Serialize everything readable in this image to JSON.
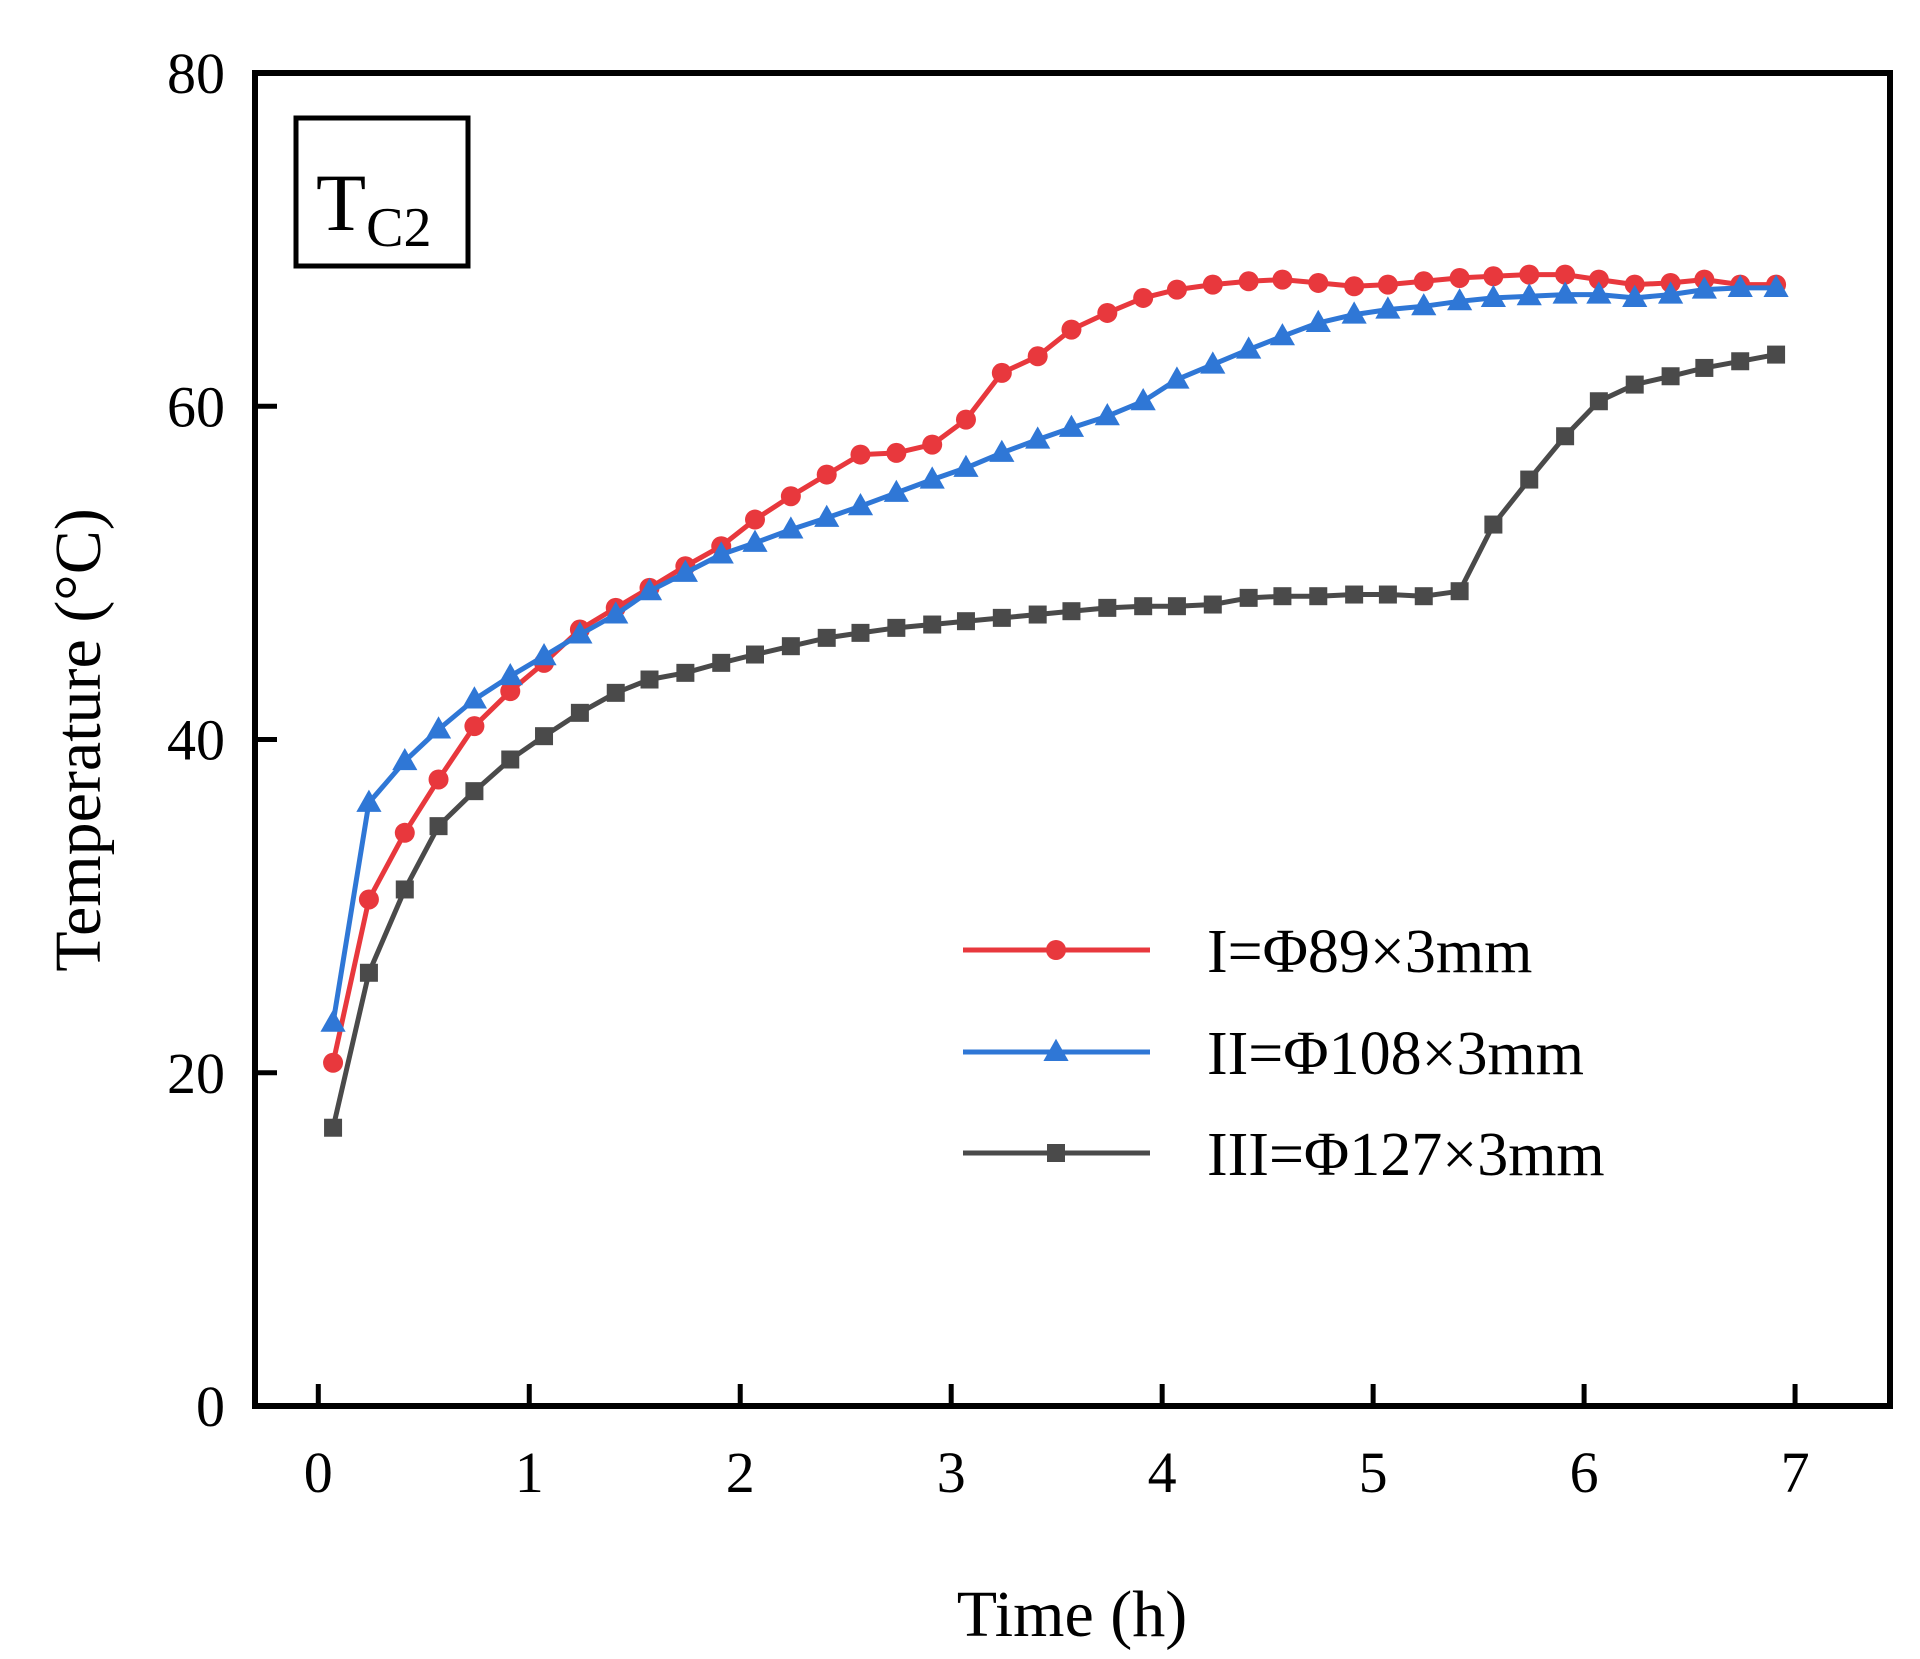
{
  "chart_data": {
    "type": "line",
    "title": "",
    "xlabel": "Time (h)",
    "ylabel": "Temperature (°C)",
    "xlim": [
      -0.3,
      7.45
    ],
    "ylim": [
      0,
      80
    ],
    "xticks": [
      "0",
      "1",
      "2",
      "3",
      "4",
      "5",
      "6",
      "7"
    ],
    "yticks": [
      "0",
      "20",
      "40",
      "60",
      "80"
    ],
    "grid": false,
    "legend_position": "lower-right",
    "panel_label": {
      "main": "T",
      "sub": "C2"
    },
    "series": [
      {
        "name": "I=Φ89×3mm",
        "color": "#e8383d",
        "marker": "circle",
        "x": [
          0.07,
          0.24,
          0.41,
          0.57,
          0.74,
          0.91,
          1.07,
          1.24,
          1.41,
          1.57,
          1.74,
          1.91,
          2.07,
          2.24,
          2.41,
          2.57,
          2.74,
          2.91,
          3.07,
          3.24,
          3.41,
          3.57,
          3.74,
          3.91,
          4.07,
          4.24,
          4.41,
          4.57,
          4.74,
          4.91,
          5.07,
          5.24,
          5.41,
          5.57,
          5.74,
          5.91,
          6.07,
          6.24,
          6.41,
          6.57,
          6.74,
          6.91
        ],
        "y": [
          20.6,
          30.4,
          34.4,
          37.6,
          40.8,
          42.9,
          44.6,
          46.6,
          47.9,
          49.1,
          50.4,
          51.6,
          53.2,
          54.6,
          55.9,
          57.1,
          57.2,
          57.7,
          59.2,
          62.0,
          63.0,
          64.6,
          65.6,
          66.5,
          67.0,
          67.3,
          67.5,
          67.6,
          67.4,
          67.2,
          67.3,
          67.5,
          67.7,
          67.8,
          67.9,
          67.9,
          67.6,
          67.3,
          67.4,
          67.6,
          67.3,
          67.3
        ]
      },
      {
        "name": "II=Φ108×3mm",
        "color": "#2f77d6",
        "marker": "triangle",
        "x": [
          0.07,
          0.24,
          0.41,
          0.57,
          0.74,
          0.91,
          1.07,
          1.24,
          1.41,
          1.57,
          1.74,
          1.91,
          2.07,
          2.24,
          2.41,
          2.57,
          2.74,
          2.91,
          3.07,
          3.24,
          3.41,
          3.57,
          3.74,
          3.91,
          4.07,
          4.24,
          4.41,
          4.57,
          4.74,
          4.91,
          5.07,
          5.24,
          5.41,
          5.57,
          5.74,
          5.91,
          6.07,
          6.24,
          6.41,
          6.57,
          6.74,
          6.91
        ],
        "y": [
          23.0,
          36.2,
          38.7,
          40.6,
          42.4,
          43.8,
          45.0,
          46.3,
          47.5,
          48.9,
          50.0,
          51.1,
          51.8,
          52.6,
          53.3,
          54.0,
          54.8,
          55.6,
          56.3,
          57.2,
          58.0,
          58.7,
          59.4,
          60.3,
          61.6,
          62.5,
          63.4,
          64.2,
          65.0,
          65.5,
          65.8,
          66.0,
          66.3,
          66.5,
          66.6,
          66.7,
          66.7,
          66.5,
          66.7,
          67.0,
          67.1,
          67.1
        ]
      },
      {
        "name": "III=Φ127×3mm",
        "color": "#4a4a4a",
        "marker": "square",
        "x": [
          0.07,
          0.24,
          0.41,
          0.57,
          0.74,
          0.91,
          1.07,
          1.24,
          1.41,
          1.57,
          1.74,
          1.91,
          2.07,
          2.24,
          2.41,
          2.57,
          2.74,
          2.91,
          3.07,
          3.24,
          3.41,
          3.57,
          3.74,
          3.91,
          4.07,
          4.24,
          4.41,
          4.57,
          4.74,
          4.91,
          5.07,
          5.24,
          5.41,
          5.57,
          5.74,
          5.91,
          6.07,
          6.24,
          6.41,
          6.57,
          6.74,
          6.91
        ],
        "y": [
          16.7,
          26.0,
          31.0,
          34.8,
          36.9,
          38.8,
          40.2,
          41.6,
          42.8,
          43.6,
          44.0,
          44.6,
          45.1,
          45.6,
          46.1,
          46.4,
          46.7,
          46.9,
          47.1,
          47.3,
          47.5,
          47.7,
          47.9,
          48.0,
          48.0,
          48.1,
          48.5,
          48.6,
          48.6,
          48.7,
          48.7,
          48.6,
          48.9,
          52.9,
          55.6,
          58.2,
          60.3,
          61.3,
          61.8,
          62.3,
          62.7,
          63.1
        ]
      }
    ]
  }
}
